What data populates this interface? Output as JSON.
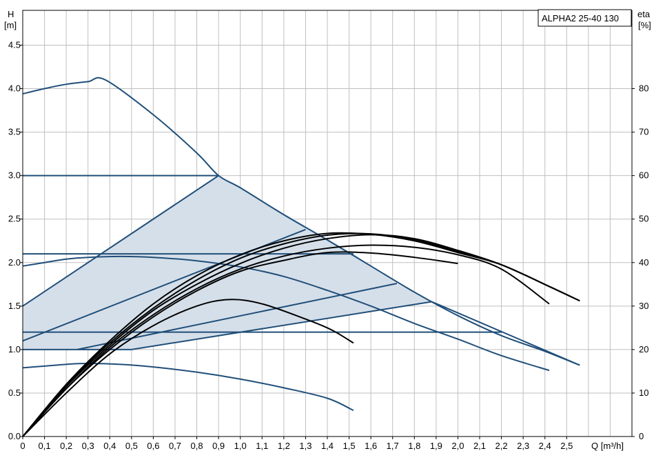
{
  "chart_data": {
    "type": "line",
    "model": "ALPHA2 25-40 130",
    "y_left_label": [
      "H",
      "[m]"
    ],
    "y_right_label": [
      "eta",
      "[%]"
    ],
    "x_label": "Q [m³/h]",
    "xlim": [
      0,
      2.8
    ],
    "ylim": [
      0,
      4.9
    ],
    "eta_lim": [
      0,
      98
    ],
    "grid": true,
    "x_ticks": [
      "0",
      "0,1",
      "0,2",
      "0,3",
      "0,4",
      "0,5",
      "0,6",
      "0,7",
      "0,8",
      "0,9",
      "1,0",
      "1,1",
      "1,2",
      "1,3",
      "1,4",
      "1,5",
      "1,6",
      "1,7",
      "1,8",
      "1,9",
      "2,0",
      "2,1",
      "2,2",
      "2,3",
      "2,4",
      "2,5"
    ],
    "y_ticks": [
      "0.0",
      "0.5",
      "1.0",
      "1.5",
      "2.0",
      "2.5",
      "3.0",
      "3.5",
      "4.0",
      "4.5"
    ],
    "eta_ticks": [
      "0",
      "10",
      "20",
      "30",
      "40",
      "50",
      "60",
      "70",
      "80"
    ],
    "colors": {
      "pump": "#1f4e79",
      "eta": "#000000",
      "fill": "#d5dfe9",
      "grid": "#bfbfbf"
    },
    "operating_area": [
      [
        0,
        1.0
      ],
      [
        0.5,
        1.0
      ],
      [
        1.88,
        1.55
      ],
      [
        1.72,
        1.76
      ],
      [
        1.52,
        2.1
      ],
      [
        0.9,
        3.0
      ],
      [
        0,
        1.5
      ]
    ],
    "head_curves": [
      {
        "points": [
          [
            0,
            3.94
          ],
          [
            0.1,
            4.0
          ],
          [
            0.2,
            4.05
          ],
          [
            0.3,
            4.08
          ],
          [
            0.38,
            4.1
          ],
          [
            0.6,
            3.7
          ],
          [
            0.8,
            3.26
          ],
          [
            0.9,
            3.0
          ],
          [
            1.0,
            2.86
          ],
          [
            1.2,
            2.55
          ],
          [
            1.4,
            2.26
          ],
          [
            1.6,
            1.96
          ],
          [
            1.8,
            1.66
          ],
          [
            2.0,
            1.39
          ],
          [
            2.2,
            1.16
          ],
          [
            2.4,
            0.98
          ],
          [
            2.56,
            0.82
          ]
        ]
      },
      {
        "points": [
          [
            0,
            1.96
          ],
          [
            0.1,
            2.0
          ],
          [
            0.2,
            2.04
          ],
          [
            0.3,
            2.06
          ],
          [
            0.45,
            2.07
          ],
          [
            0.6,
            2.06
          ],
          [
            0.8,
            2.02
          ],
          [
            1.0,
            1.95
          ],
          [
            1.2,
            1.84
          ],
          [
            1.4,
            1.68
          ],
          [
            1.6,
            1.5
          ],
          [
            1.8,
            1.3
          ],
          [
            2.0,
            1.12
          ],
          [
            2.2,
            0.93
          ],
          [
            2.42,
            0.76
          ]
        ]
      },
      {
        "points": [
          [
            0,
            0.79
          ],
          [
            0.1,
            0.81
          ],
          [
            0.2,
            0.83
          ],
          [
            0.3,
            0.84
          ],
          [
            0.45,
            0.83
          ],
          [
            0.6,
            0.8
          ],
          [
            0.8,
            0.74
          ],
          [
            1.0,
            0.66
          ],
          [
            1.2,
            0.56
          ],
          [
            1.4,
            0.44
          ],
          [
            1.52,
            0.3
          ]
        ]
      },
      {
        "points": [
          [
            0,
            3.0
          ],
          [
            0.9,
            3.0
          ]
        ]
      },
      {
        "points": [
          [
            0,
            2.1
          ],
          [
            1.52,
            2.1
          ]
        ]
      },
      {
        "points": [
          [
            0,
            1.2
          ],
          [
            2.2,
            1.2
          ]
        ]
      },
      {
        "points": [
          [
            0,
            1.0
          ],
          [
            0.5,
            1.0
          ]
        ]
      },
      {
        "points": [
          [
            0,
            1.5
          ],
          [
            0.9,
            3.0
          ]
        ]
      },
      {
        "points": [
          [
            0,
            1.1
          ],
          [
            1.3,
            2.38
          ]
        ]
      },
      {
        "points": [
          [
            0.25,
            1.0
          ],
          [
            1.72,
            1.76
          ]
        ]
      },
      {
        "points": [
          [
            0.5,
            1.0
          ],
          [
            1.88,
            1.55
          ]
        ]
      },
      {
        "points": [
          [
            1.88,
            1.55
          ],
          [
            2.56,
            0.82
          ]
        ]
      }
    ],
    "eta_curves": [
      {
        "points": [
          [
            0,
            0
          ],
          [
            0.2,
            10
          ],
          [
            0.4,
            19
          ],
          [
            0.6,
            25.5
          ],
          [
            0.8,
            30
          ],
          [
            0.95,
            31.5
          ],
          [
            1.1,
            30.5
          ],
          [
            1.3,
            27
          ],
          [
            1.42,
            24.5
          ],
          [
            1.52,
            21.5
          ]
        ]
      },
      {
        "points": [
          [
            0,
            0
          ],
          [
            0.2,
            11
          ],
          [
            0.4,
            20
          ],
          [
            0.6,
            27.5
          ],
          [
            0.8,
            33.5
          ],
          [
            1.0,
            38
          ],
          [
            1.2,
            40.5
          ],
          [
            1.4,
            42.3
          ],
          [
            1.6,
            42.2
          ],
          [
            1.8,
            41.2
          ],
          [
            2.0,
            39.8
          ]
        ]
      },
      {
        "points": [
          [
            0,
            0
          ],
          [
            0.2,
            11
          ],
          [
            0.4,
            20.5
          ],
          [
            0.6,
            28
          ],
          [
            0.8,
            34
          ],
          [
            1.0,
            38.5
          ],
          [
            1.2,
            41.5
          ],
          [
            1.4,
            43.3
          ],
          [
            1.6,
            44
          ],
          [
            1.8,
            43.5
          ],
          [
            2.0,
            41.8
          ],
          [
            2.2,
            38.5
          ],
          [
            2.42,
            30.5
          ]
        ]
      },
      {
        "points": [
          [
            0,
            0
          ],
          [
            0.2,
            11.5
          ],
          [
            0.4,
            21
          ],
          [
            0.6,
            29
          ],
          [
            0.8,
            35
          ],
          [
            1.0,
            39.8
          ],
          [
            1.2,
            43.3
          ],
          [
            1.4,
            45.5
          ],
          [
            1.6,
            46.4
          ],
          [
            1.8,
            45.5
          ],
          [
            2.0,
            42.8
          ],
          [
            2.2,
            39.5
          ],
          [
            2.42,
            34.5
          ],
          [
            2.56,
            31.2
          ]
        ]
      },
      {
        "points": [
          [
            0,
            0
          ],
          [
            0.2,
            11.8
          ],
          [
            0.4,
            21.5
          ],
          [
            0.6,
            29.5
          ],
          [
            0.8,
            36
          ],
          [
            1.0,
            41
          ],
          [
            1.2,
            44.3
          ],
          [
            1.4,
            46.3
          ],
          [
            1.6,
            46.6
          ],
          [
            1.8,
            45.3
          ],
          [
            2.0,
            42.5
          ],
          [
            2.2,
            39.5
          ],
          [
            2.42,
            34.5
          ],
          [
            2.56,
            31.2
          ]
        ]
      },
      {
        "points": [
          [
            0,
            0
          ],
          [
            0.2,
            12
          ],
          [
            0.4,
            22
          ],
          [
            0.6,
            30.5
          ],
          [
            0.8,
            37
          ],
          [
            1.0,
            41.8
          ],
          [
            1.2,
            45
          ],
          [
            1.4,
            46.7
          ],
          [
            1.6,
            46.5
          ],
          [
            1.8,
            45
          ],
          [
            2.0,
            42.3
          ],
          [
            2.2,
            39.5
          ],
          [
            2.42,
            34.5
          ],
          [
            2.56,
            31.2
          ]
        ]
      }
    ]
  }
}
